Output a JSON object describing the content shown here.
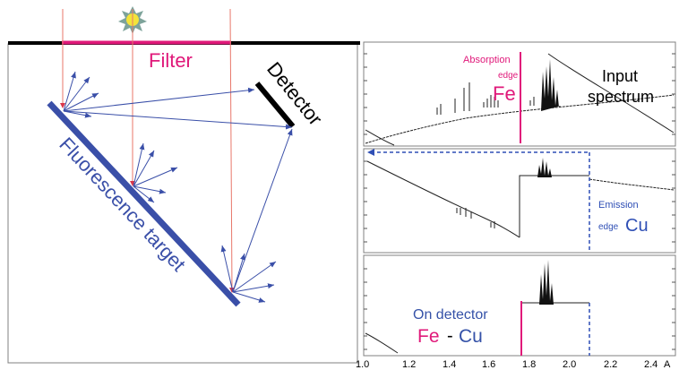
{
  "left_panel": {
    "filter_label": "Filter",
    "detector_label": "Detector",
    "target_label": "Fluorescence target",
    "source_icon": "sun-icon"
  },
  "top_panel": {
    "absorption_line1": "Absorption",
    "absorption_line2": "edge",
    "absorption_element": "Fe",
    "input_line1": "Input",
    "input_line2": "spectrum"
  },
  "middle_panel": {
    "emission_line1": "Emission",
    "emission_line2": "edge",
    "emission_element": "Cu"
  },
  "bottom_panel": {
    "on_detector": "On detector",
    "element_a": "Fe",
    "dash": "-",
    "element_b": "Cu"
  },
  "x_axis": {
    "ticks": [
      "1.0",
      "1.2",
      "1.4",
      "1.6",
      "1.8",
      "2.0",
      "2.2",
      "2.4"
    ],
    "unit": "A"
  },
  "colors": {
    "magenta": "#e0197a",
    "blue": "#3a4fa8",
    "dark_blue": "#3552a8",
    "ray": "#e8776a",
    "emission": "#2f4fb5"
  }
}
